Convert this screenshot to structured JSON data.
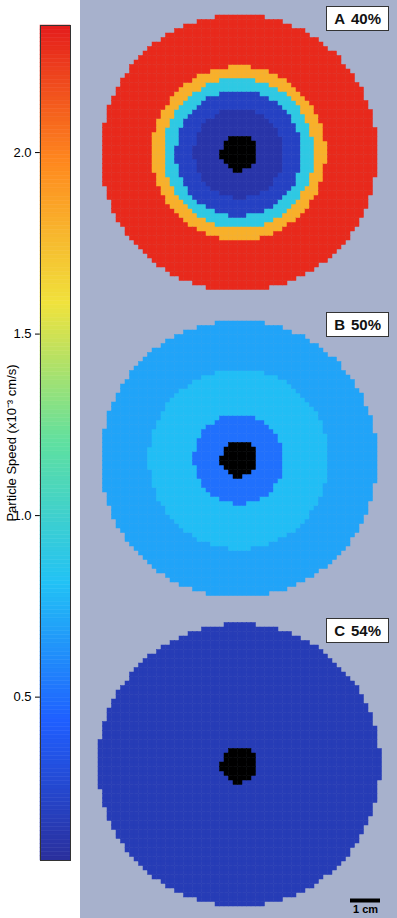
{
  "chart_data": {
    "type": "heatmap_panels",
    "colorbar": {
      "title": "Particle Speed (x10⁻³ cm/s)",
      "range": [
        0.05,
        2.35
      ],
      "ticks": [
        0.5,
        {
          "value": 1,
          "label": "1.0"
        },
        1.5,
        {
          "value": 2,
          "label": "2.0"
        }
      ]
    },
    "panels": [
      {
        "letter": "A",
        "label": "40%",
        "xlim": [
          -5,
          5
        ],
        "ylim": [
          -5,
          5
        ],
        "tick_labels": false,
        "radius_edges_cm": [
          0.6,
          1.5,
          2.1,
          2.5,
          2.9,
          4.6
        ],
        "speed": [
          0.1,
          0.2,
          0.9,
          1.8,
          2.3
        ]
      },
      {
        "letter": "B",
        "label": "50%",
        "xlim": [
          -5,
          5
        ],
        "ylim": [
          -5,
          5
        ],
        "tick_labels": false,
        "radius_edges_cm": [
          0.6,
          1.5,
          3.0,
          4.6
        ],
        "speed": [
          0.5,
          0.8,
          0.7
        ]
      },
      {
        "letter": "C",
        "label": "54%",
        "xlim": [
          -5,
          5
        ],
        "ylim": [
          -5,
          5
        ],
        "tick_labels": false,
        "radius_edges_cm": [
          0.6,
          4.7
        ],
        "speed": [
          0.15
        ],
        "scale_bar": {
          "length_cm": 1,
          "label": "1 cm"
        }
      }
    ]
  }
}
